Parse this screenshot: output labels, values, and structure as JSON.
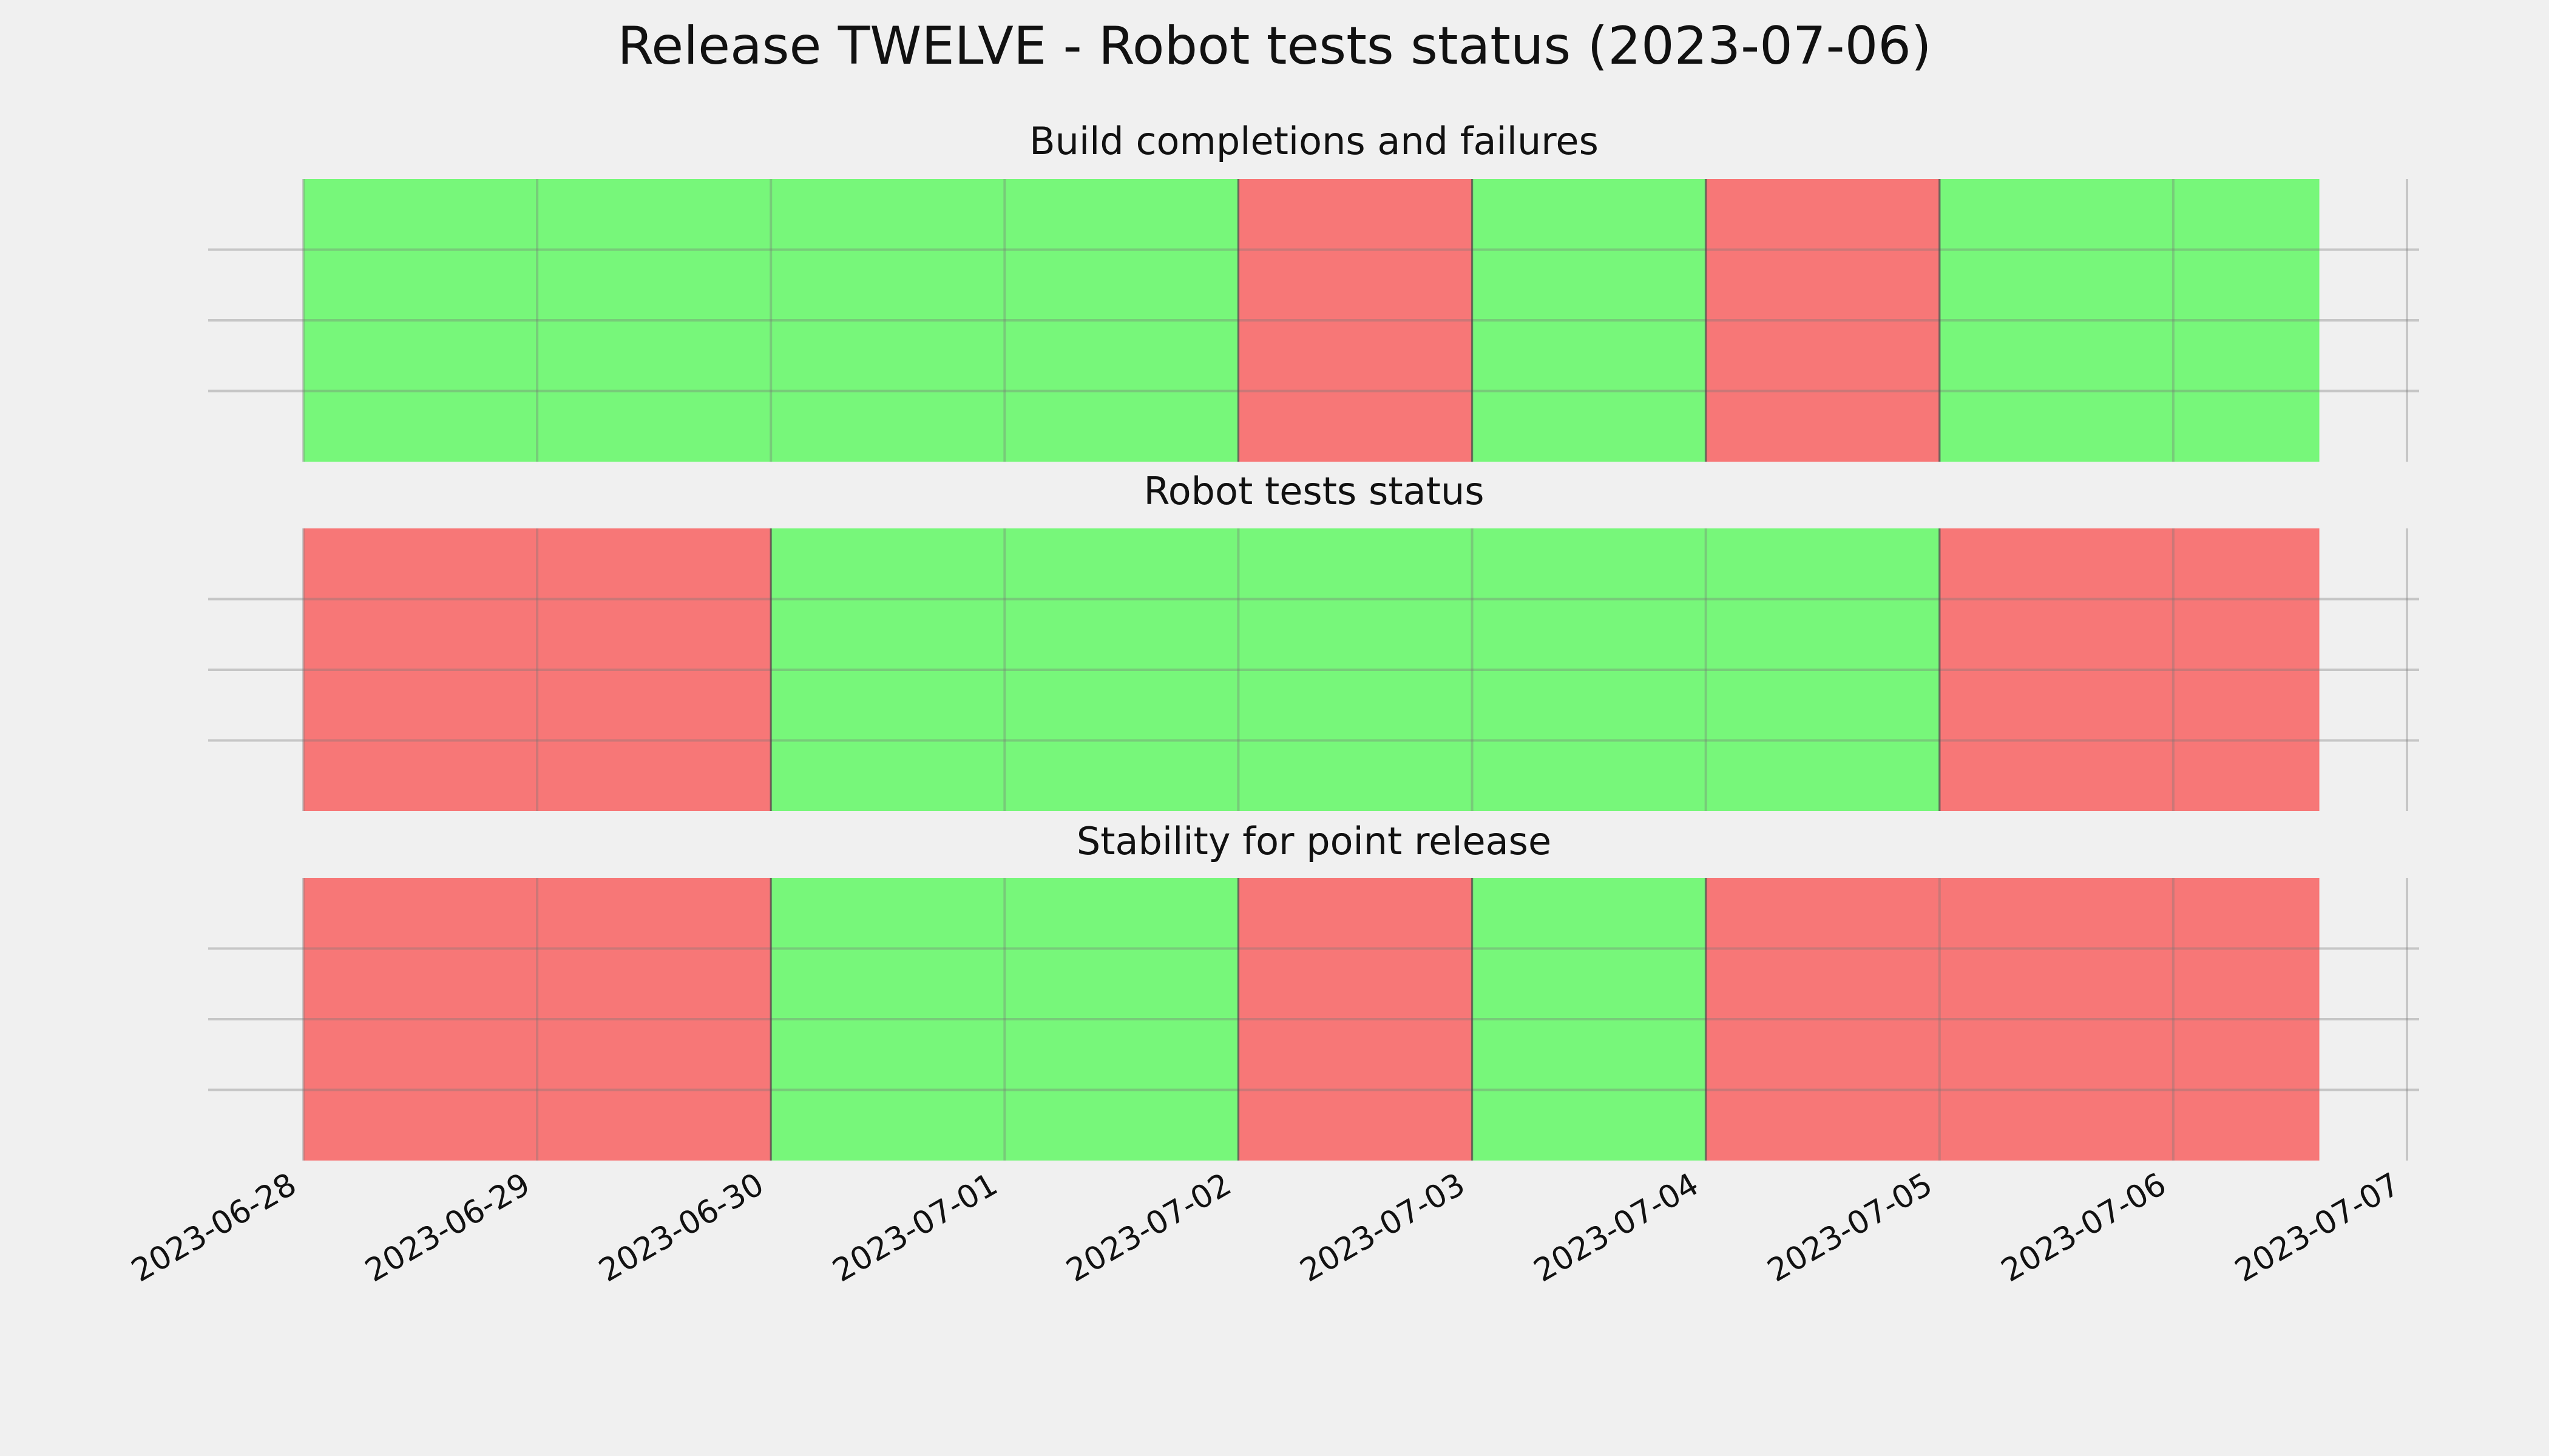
{
  "colors": {
    "pass": "#77f77a",
    "fail": "#f77777",
    "background": "#f0f0f0",
    "grid": "#cbcbcb"
  },
  "chart_data": {
    "type": "timeline",
    "title": "Release TWELVE - Robot tests status (2023-07-06)",
    "x_range": [
      "2023-06-28",
      "2023-07-07"
    ],
    "x_ticks": [
      "2023-06-28",
      "2023-06-29",
      "2023-06-30",
      "2023-07-01",
      "2023-07-02",
      "2023-07-03",
      "2023-07-04",
      "2023-07-05",
      "2023-07-06",
      "2023-07-07"
    ],
    "grid": true,
    "panels": [
      {
        "title": "Build completions and failures",
        "segments": [
          {
            "start": "2023-06-28",
            "end": "2023-07-02",
            "status": "pass"
          },
          {
            "start": "2023-07-02",
            "end": "2023-07-03",
            "status": "fail"
          },
          {
            "start": "2023-07-03",
            "end": "2023-07-04",
            "status": "pass"
          },
          {
            "start": "2023-07-04",
            "end": "2023-07-05",
            "status": "fail"
          },
          {
            "start": "2023-07-05",
            "end": "2023-07-06 15:00",
            "status": "pass"
          }
        ]
      },
      {
        "title": "Robot tests status",
        "segments": [
          {
            "start": "2023-06-28",
            "end": "2023-06-30",
            "status": "fail"
          },
          {
            "start": "2023-06-30",
            "end": "2023-07-05",
            "status": "pass"
          },
          {
            "start": "2023-07-05",
            "end": "2023-07-06 15:00",
            "status": "fail"
          }
        ]
      },
      {
        "title": "Stability for point release",
        "segments": [
          {
            "start": "2023-06-28",
            "end": "2023-06-30",
            "status": "fail"
          },
          {
            "start": "2023-06-30",
            "end": "2023-07-02",
            "status": "pass"
          },
          {
            "start": "2023-07-02",
            "end": "2023-07-03",
            "status": "fail"
          },
          {
            "start": "2023-07-03",
            "end": "2023-07-04",
            "status": "pass"
          },
          {
            "start": "2023-07-04",
            "end": "2023-07-06 15:00",
            "status": "fail"
          }
        ]
      }
    ]
  }
}
